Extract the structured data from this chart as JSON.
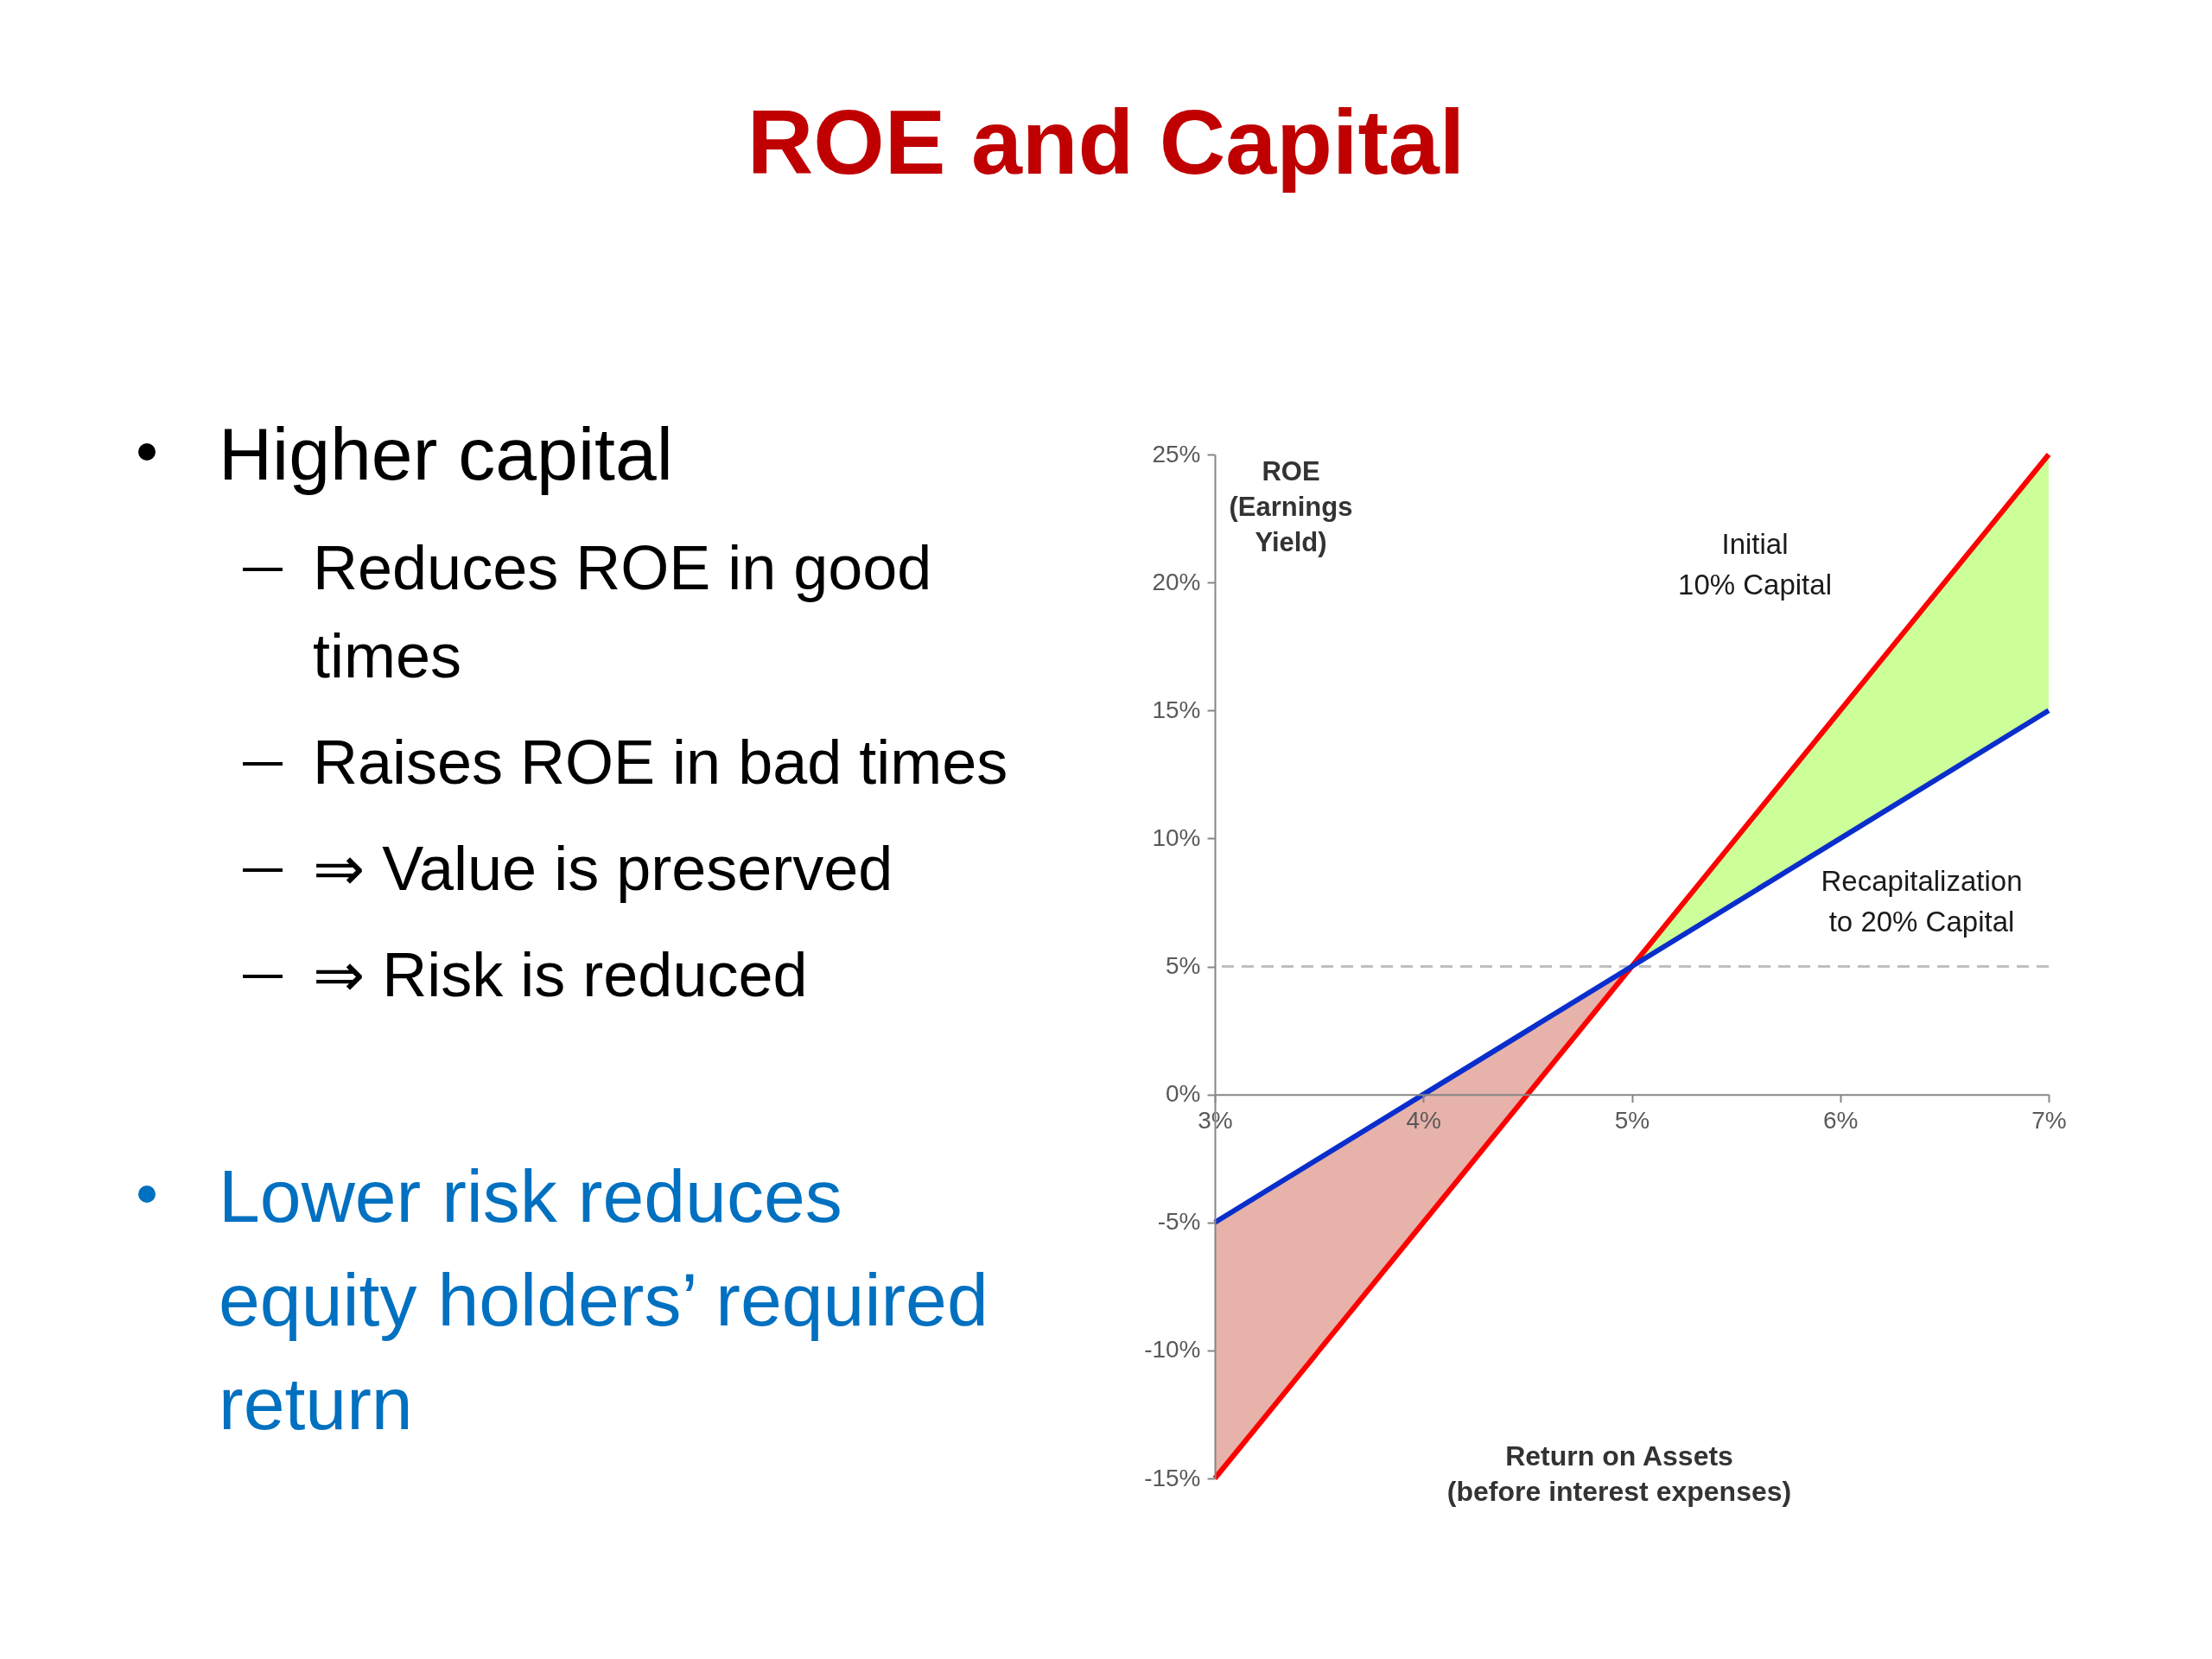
{
  "chart_data": {
    "type": "line",
    "title": "ROE and Capital",
    "xlabel": "Return on Assets\n(before interest expenses)",
    "ylabel": "ROE\n(Earnings\nYield)",
    "x": [
      3,
      4,
      5,
      6,
      7
    ],
    "series": [
      {
        "type": "area",
        "color": "#e6b2aa",
        "x": [
          3,
          4,
          5
        ],
        "values": [
          null,
          null,
          null
        ],
        "lower": [
          -15,
          -5,
          5
        ],
        "upper": [
          -5,
          0,
          5
        ]
      },
      {
        "type": "area",
        "color": "#ccff99",
        "x": [
          5,
          6,
          7
        ],
        "values": [
          null,
          null,
          null
        ],
        "lower": [
          5,
          10,
          15
        ],
        "upper": [
          5,
          15,
          25
        ]
      },
      {
        "name": "Initial\n10% Capital",
        "color": "#ff0000",
        "values": [
          -15,
          -5,
          5,
          15,
          25
        ]
      },
      {
        "name": "Recapitalization\nto 20% Capital",
        "color": "#0a2ecc",
        "values": [
          -5,
          0,
          5,
          10,
          15
        ]
      }
    ],
    "xlim": [
      3,
      7
    ],
    "xticks": [
      {
        "value": 3,
        "label": "3%"
      },
      {
        "value": 4,
        "label": "4%"
      },
      {
        "value": 5,
        "label": "5%"
      },
      {
        "value": 6,
        "label": "6%"
      },
      {
        "value": 7,
        "label": "7%"
      }
    ],
    "ylim": [
      -15,
      25
    ],
    "yticks": [
      {
        "value": -15,
        "label": "-15%"
      },
      {
        "value": -10,
        "label": "-10%"
      },
      {
        "value": -5,
        "label": "-5%"
      },
      {
        "value": 0,
        "label": "0%"
      },
      {
        "value": 5,
        "label": "5%"
      },
      {
        "value": 10,
        "label": "10%"
      },
      {
        "value": 15,
        "label": "15%"
      },
      {
        "value": 20,
        "label": "20%"
      },
      {
        "value": 25,
        "label": "25%"
      }
    ],
    "ref_lines": [
      {
        "axis": "y",
        "value": 5,
        "color": "#bfbfbf",
        "line_style": "dashed"
      }
    ],
    "annotations": [
      "Higher capital",
      "Reduces ROE in good times",
      "Raises ROE in bad times",
      "⇒ Value is preserved",
      "⇒ Risk is reduced",
      "Lower risk reduces equity holders’ required return"
    ]
  }
}
